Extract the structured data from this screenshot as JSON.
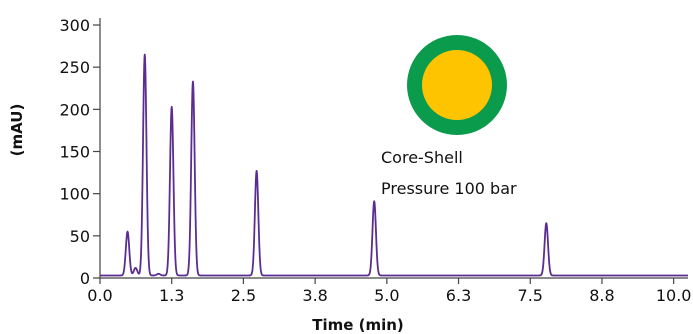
{
  "chart_data": {
    "type": "line",
    "title": "",
    "xlabel": "Time (min)",
    "ylabel": "(mAU)",
    "xlim": [
      0.0,
      10.25
    ],
    "ylim": [
      0,
      300
    ],
    "x_ticks": [
      0.0,
      1.25,
      2.5,
      3.75,
      5.0,
      6.25,
      7.5,
      8.75,
      10.0
    ],
    "x_tick_labels": [
      "0.0",
      "1.3",
      "2.5",
      "3.8",
      "5.0",
      "6.3",
      "7.5",
      "8.8",
      "10.0"
    ],
    "y_ticks": [
      0,
      50,
      100,
      150,
      200,
      250,
      300
    ],
    "y_tick_labels": [
      "0",
      "50",
      "100",
      "150",
      "200",
      "250",
      "300"
    ],
    "baseline": 3,
    "line_color": "#5b2d91",
    "peaks": [
      {
        "time": 0.48,
        "height": 55
      },
      {
        "time": 0.62,
        "height": 12
      },
      {
        "time": 0.78,
        "height": 265
      },
      {
        "time": 1.02,
        "height": 5
      },
      {
        "time": 1.25,
        "height": 203
      },
      {
        "time": 1.62,
        "height": 233
      },
      {
        "time": 2.73,
        "height": 127
      },
      {
        "time": 4.78,
        "height": 91
      },
      {
        "time": 7.78,
        "height": 65
      }
    ],
    "annotations": [
      "Core-Shell",
      "Pressure 100 bar"
    ],
    "grid": false,
    "legend": "none"
  },
  "particle_icon": {
    "name": "core-shell-particle-icon",
    "shell_color": "#0b9b4c",
    "core_color": "#ffc400"
  }
}
